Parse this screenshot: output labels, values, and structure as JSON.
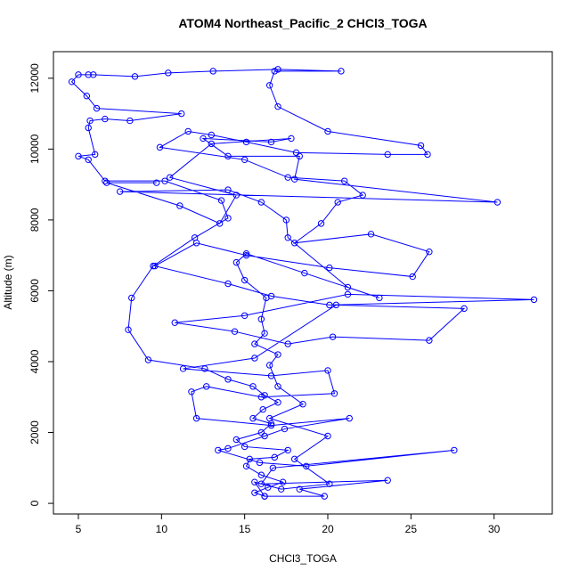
{
  "chart_data": {
    "type": "line",
    "markers": true,
    "title": "ATOM4 Northeast_Pacific_2 CHCl3_TOGA",
    "x_label": "CHCl3_TOGA",
    "y_label": "Altitude (m)",
    "xlim": [
      3.5,
      33.5
    ],
    "ylim": [
      -300,
      12750
    ],
    "xticks": [
      5,
      10,
      15,
      20,
      25,
      30
    ],
    "yticks": [
      0,
      2000,
      4000,
      6000,
      8000,
      10000,
      12000
    ],
    "x": [
      16.2,
      15.6,
      16.4,
      17.3,
      16.0,
      15.1,
      15.3,
      16.8,
      17.6,
      15.0,
      14.5,
      16.0,
      16.6,
      15.5,
      16.1,
      17.0,
      16.2,
      15.5,
      14.0,
      12.6,
      9.2,
      8.0,
      8.2,
      9.5,
      12.0,
      14.0,
      13.6,
      10.2,
      6.6,
      5.6,
      5.0,
      6.0,
      5.6,
      5.7,
      6.6,
      8.1,
      11.2,
      6.1,
      5.5,
      4.6,
      5.0,
      5.6,
      5.9,
      8.4,
      10.4,
      13.1,
      17.0,
      20.8,
      16.8,
      16.5,
      17.0,
      20.0,
      25.6,
      26.0,
      23.6,
      18.1,
      15.1,
      13.0,
      11.6,
      9.9,
      15.0,
      17.6,
      21.0,
      22.1,
      20.6,
      19.6,
      18.0,
      22.6,
      26.1,
      25.1,
      20.1,
      15.1,
      12.1,
      9.6,
      14.0,
      16.6,
      20.1,
      32.4,
      21.2,
      15.0,
      10.8,
      14.4,
      17.6,
      20.3,
      26.1,
      28.2,
      20.5,
      15.6,
      11.3,
      16.6,
      20.0,
      20.4,
      16.0,
      12.7,
      11.8,
      12.1,
      16.6,
      21.3,
      17.4,
      16.2,
      14.0,
      13.4,
      15.9,
      18.7,
      27.6,
      16.7,
      16.0,
      23.6,
      18.3,
      19.8,
      16.2,
      15.6,
      17.2,
      20.1,
      18.0,
      20.0,
      16.5,
      18.5,
      17.0,
      16.5,
      17.0,
      15.6,
      16.2,
      16.0,
      16.3,
      15.0,
      14.5,
      15.1,
      18.6,
      23.1,
      21.2,
      17.6,
      17.5,
      16.0,
      14.0,
      7.5,
      30.2,
      18.0,
      18.3,
      14.0,
      12.5,
      16.6,
      17.8,
      13.0,
      10.5,
      14.5,
      13.5,
      11.1,
      6.7,
      9.7
    ],
    "series": [
      {
        "color": "#0000ff",
        "values": [
          200,
          300,
          450,
          600,
          800,
          1050,
          1250,
          1300,
          1500,
          1600,
          1800,
          2000,
          2250,
          2400,
          2650,
          2850,
          3050,
          3300,
          3500,
          3800,
          4050,
          4900,
          5800,
          6700,
          7500,
          8050,
          8550,
          9100,
          9100,
          9700,
          9800,
          9850,
          10600,
          10800,
          10850,
          10800,
          11000,
          11150,
          11500,
          11900,
          12100,
          12100,
          12100,
          12050,
          12150,
          12200,
          12250,
          12200,
          12200,
          11800,
          11200,
          10500,
          10100,
          9850,
          9850,
          9900,
          10200,
          10400,
          10500,
          10050,
          9700,
          9200,
          9100,
          8700,
          8500,
          7900,
          7350,
          7600,
          7100,
          6400,
          6650,
          7000,
          7350,
          6700,
          6200,
          5850,
          5600,
          5750,
          5900,
          5300,
          5100,
          4850,
          4500,
          4700,
          4600,
          5500,
          5600,
          4100,
          3800,
          3600,
          3750,
          3100,
          3000,
          3300,
          3150,
          2400,
          2200,
          2400,
          2100,
          1900,
          1550,
          1500,
          1150,
          1050,
          1500,
          1000,
          550,
          650,
          400,
          200,
          200,
          600,
          400,
          550,
          1250,
          1900,
          2400,
          2800,
          3300,
          3900,
          4200,
          4500,
          4800,
          5200,
          5800,
          6300,
          6800,
          7050,
          6500,
          5800,
          6100,
          7500,
          8000,
          8500,
          8850,
          8800,
          8500,
          9150,
          9800,
          9800,
          10300,
          10200,
          10300,
          10150,
          9200,
          8700,
          7900,
          8400,
          9050,
          9050
        ]
      }
    ]
  }
}
